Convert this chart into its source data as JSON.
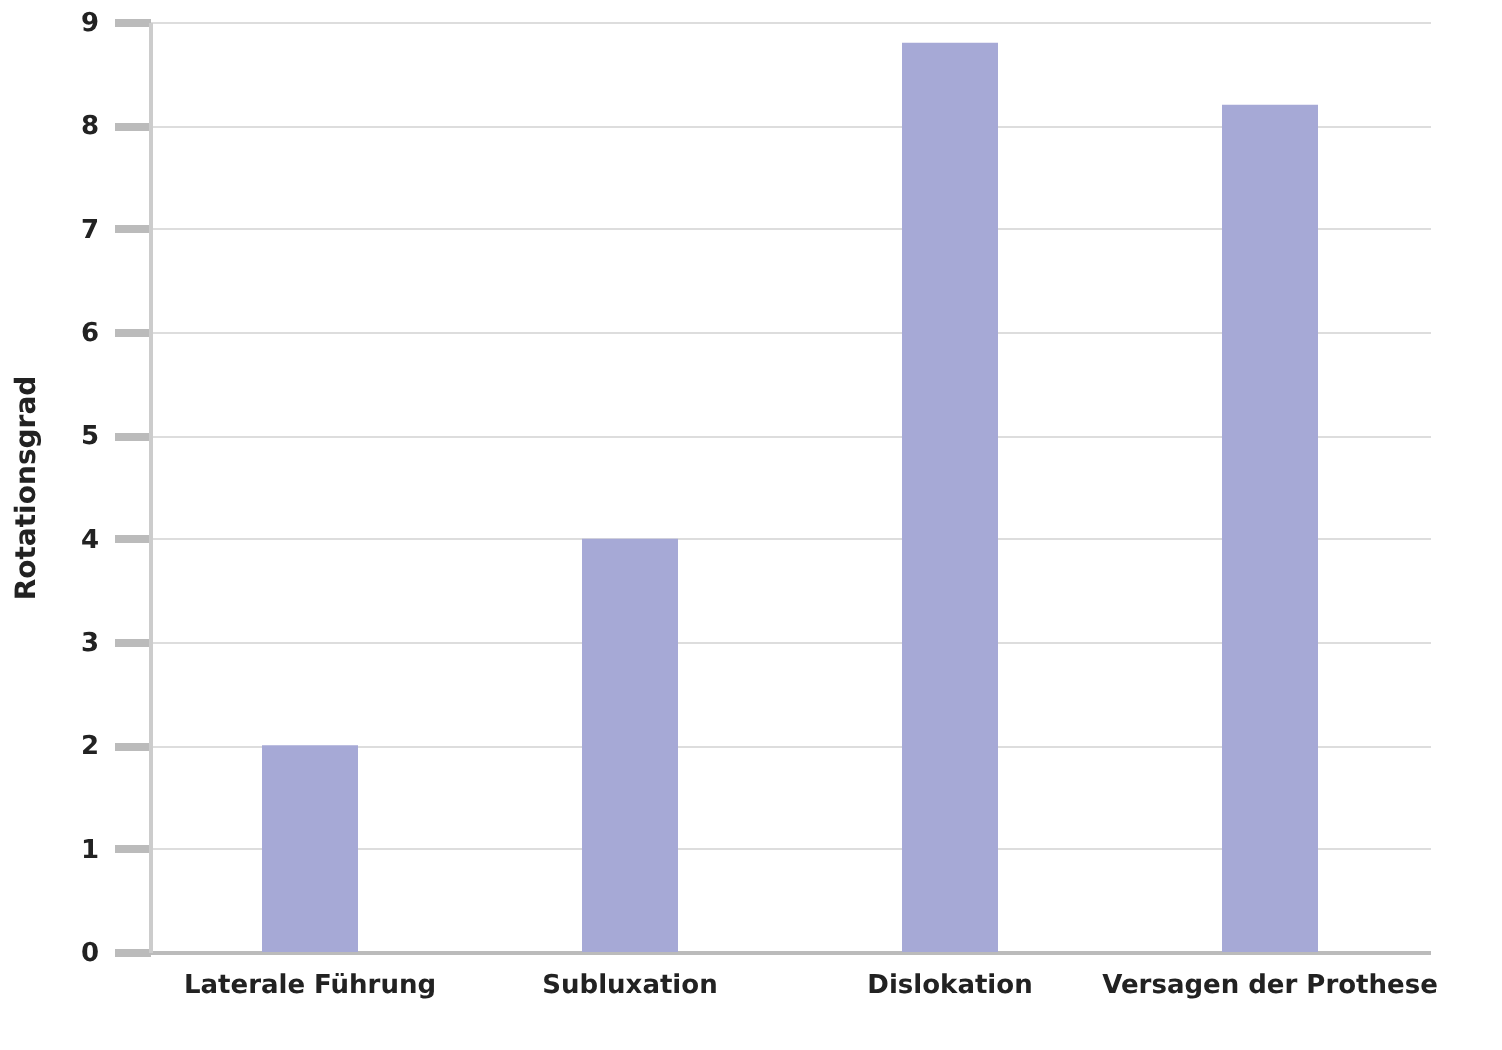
{
  "chart_data": {
    "type": "bar",
    "ylabel": "Rotationsgrad",
    "categories": [
      "Laterale Führung",
      "Subluxation",
      "Dislokation",
      "Versagen der Prothese"
    ],
    "values": [
      2,
      4,
      8.8,
      8.2
    ],
    "color": "#a6a9d6",
    "ylim": [
      0,
      9
    ],
    "yticks": [
      0,
      1,
      2,
      3,
      4,
      5,
      6,
      7,
      8,
      9
    ],
    "grid": "y"
  }
}
